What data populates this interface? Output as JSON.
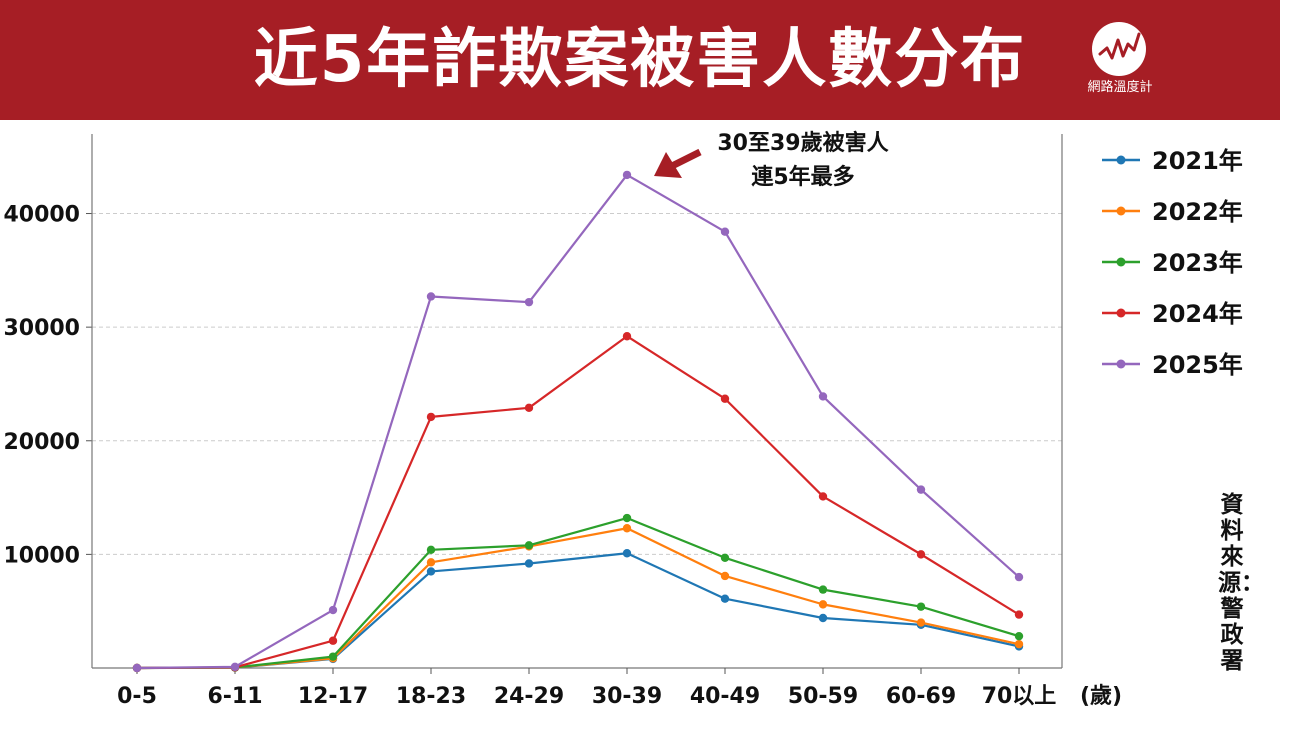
{
  "header": {
    "title": "近5年詐欺案被害人數分布",
    "logo_text": "網路溫度計",
    "bg_color": "#a61e25"
  },
  "source_text": "資料來源：警政署",
  "chart_data": {
    "type": "line",
    "title": "近5年詐欺案被害人數分布",
    "xlabel": "(歲)",
    "ylabel": "",
    "categories": [
      "0-5",
      "6-11",
      "12-17",
      "18-23",
      "24-29",
      "30-39",
      "40-49",
      "50-59",
      "60-69",
      "70以上"
    ],
    "ylim": [
      0,
      47000
    ],
    "yticks": [
      10000,
      20000,
      30000,
      40000
    ],
    "grid": true,
    "legend_position": "right",
    "series": [
      {
        "name": "2021年",
        "color": "#1f77b4",
        "values": [
          0,
          30,
          800,
          8500,
          9200,
          10100,
          6100,
          4400,
          3800,
          1900
        ]
      },
      {
        "name": "2022年",
        "color": "#ff7f0e",
        "values": [
          0,
          40,
          850,
          9300,
          10700,
          12300,
          8100,
          5600,
          4000,
          2100
        ]
      },
      {
        "name": "2023年",
        "color": "#2ca02c",
        "values": [
          0,
          50,
          1000,
          10400,
          10800,
          13200,
          9700,
          6900,
          5400,
          2800
        ]
      },
      {
        "name": "2024年",
        "color": "#d62728",
        "values": [
          0,
          60,
          2400,
          22100,
          22900,
          29200,
          23700,
          15100,
          10000,
          4700
        ]
      },
      {
        "name": "2025年",
        "color": "#9467bd",
        "values": [
          0,
          100,
          5100,
          32700,
          32200,
          43400,
          38400,
          23900,
          15700,
          8000
        ]
      }
    ],
    "annotation": {
      "lines": [
        "30至39歲被害人",
        "連5年最多"
      ],
      "arrow_color": "#a61e25",
      "points_to": "30-39"
    }
  }
}
